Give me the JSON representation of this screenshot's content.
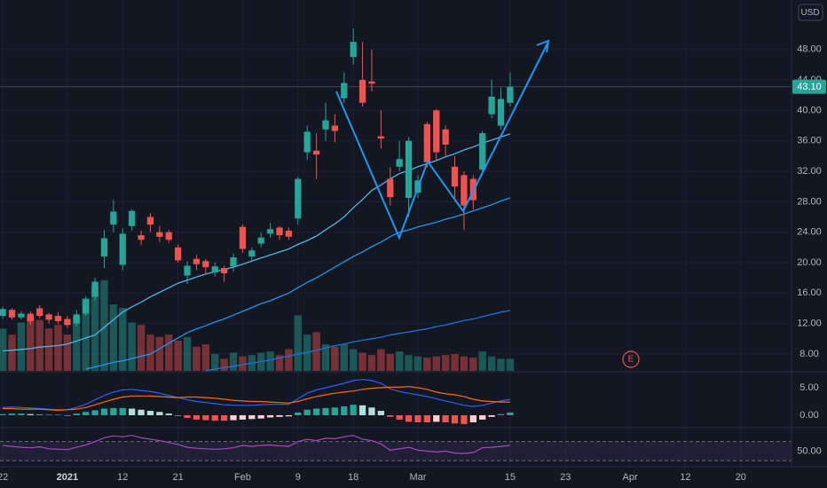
{
  "chart_data": {
    "type": "candlestick",
    "currency": "USD",
    "marker": "E",
    "xlim": [
      -0.3,
      85.5
    ],
    "xticks": [
      {
        "value": 0,
        "label": "22"
      },
      {
        "value": 7,
        "label": "2021"
      },
      {
        "value": 13,
        "label": "12"
      },
      {
        "value": 19,
        "label": "21"
      },
      {
        "value": 26,
        "label": "Feb"
      },
      {
        "value": 32,
        "label": "9"
      },
      {
        "value": 38,
        "label": "18"
      },
      {
        "value": 45,
        "label": "Mar"
      },
      {
        "value": 55,
        "label": "15"
      },
      {
        "value": 61,
        "label": "23"
      },
      {
        "value": 68,
        "label": "Apr"
      },
      {
        "value": 74,
        "label": "12"
      },
      {
        "value": 80,
        "label": "20"
      }
    ],
    "ylim": [
      5.78,
      54.5
    ],
    "yticks": [
      {
        "value": 8,
        "label": "8.00"
      },
      {
        "value": 12,
        "label": "12.00"
      },
      {
        "value": 16,
        "label": "16.00"
      },
      {
        "value": 20,
        "label": "20.00"
      },
      {
        "value": 24,
        "label": "24.00"
      },
      {
        "value": 28,
        "label": "28.00"
      },
      {
        "value": 32,
        "label": "32.00"
      },
      {
        "value": 36,
        "label": "36.00"
      },
      {
        "value": 40,
        "label": "40.00"
      },
      {
        "value": 44,
        "label": "44.00"
      },
      {
        "value": 48,
        "label": "48.00"
      }
    ],
    "up_color": "#26a69a",
    "down_color": "#ef5350",
    "open": [
      13.0,
      13.8,
      12.8,
      13.3,
      14.0,
      13.2,
      13.0,
      12.6,
      12.0,
      13.3,
      15.5,
      20.8,
      25.0,
      19.7,
      24.8,
      23.6,
      26.0,
      24.0,
      24.0,
      22.0,
      18.3,
      20.5,
      20.2,
      18.7,
      19.3,
      19.5,
      24.7,
      20.8,
      22.5,
      23.8,
      24.6,
      24.2,
      25.8,
      34.5,
      34.7,
      37.5,
      38.0,
      41.6,
      47.0,
      44.0,
      43.8,
      36.6,
      31.0,
      32.6,
      28.5,
      29.2,
      38.2,
      40.0,
      37.5,
      32.6,
      31.5,
      31.0,
      32.2,
      39.5,
      38.0,
      41.0
    ],
    "high": [
      14.2,
      14.0,
      13.6,
      13.6,
      14.4,
      13.4,
      13.5,
      13.0,
      13.8,
      15.6,
      18.0,
      24.3,
      28.2,
      24.5,
      27.0,
      24.2,
      26.5,
      24.8,
      24.3,
      22.4,
      20.2,
      21.0,
      20.5,
      20.0,
      19.6,
      21.2,
      25.0,
      22.0,
      24.0,
      25.2,
      24.8,
      24.6,
      31.3,
      38.0,
      37.0,
      41.0,
      39.5,
      45.0,
      50.8,
      49.0,
      48.0,
      40.0,
      32.5,
      36.0,
      36.5,
      31.5,
      38.5,
      40.2,
      38.0,
      34.0,
      32.0,
      31.5,
      37.3,
      44.0,
      43.0,
      45.0
    ],
    "low": [
      12.6,
      12.5,
      12.5,
      11.8,
      12.7,
      12.0,
      11.9,
      11.4,
      11.6,
      13.0,
      15.0,
      19.3,
      24.0,
      19.0,
      24.2,
      22.3,
      24.0,
      22.7,
      22.6,
      20.0,
      17.2,
      19.0,
      18.4,
      18.2,
      17.5,
      18.8,
      21.3,
      20.2,
      22.0,
      23.3,
      23.0,
      23.0,
      25.0,
      33.5,
      31.0,
      36.0,
      35.8,
      41.0,
      46.0,
      40.5,
      42.5,
      35.0,
      27.5,
      32.0,
      26.0,
      28.5,
      32.5,
      33.5,
      34.0,
      28.0,
      24.3,
      27.0,
      31.5,
      39.0,
      37.5,
      40.5
    ],
    "close": [
      13.9,
      12.8,
      13.3,
      12.3,
      13.0,
      12.5,
      12.3,
      11.8,
      13.2,
      15.2,
      17.5,
      23.2,
      26.7,
      23.8,
      26.8,
      23.0,
      25.0,
      23.4,
      23.0,
      20.3,
      19.6,
      19.8,
      19.4,
      19.5,
      18.6,
      20.7,
      21.8,
      21.6,
      23.3,
      24.4,
      23.6,
      23.4,
      31.0,
      37.2,
      34.2,
      38.7,
      37.3,
      43.6,
      49.0,
      41.0,
      43.5,
      36.3,
      28.6,
      33.6,
      36.0,
      30.8,
      33.2,
      34.5,
      35.5,
      30.0,
      27.5,
      28.2,
      37.0,
      41.8,
      41.5,
      43.1
    ],
    "last_price": {
      "value": 43.1,
      "label": "43.10"
    },
    "volume": [
      35,
      30,
      40,
      45,
      42,
      35,
      38,
      30,
      45,
      60,
      70,
      75,
      55,
      52,
      40,
      38,
      30,
      28,
      30,
      25,
      28,
      20,
      22,
      14,
      10,
      15,
      12,
      13,
      15,
      16,
      13,
      18,
      46,
      30,
      32,
      22,
      20,
      22,
      18,
      15,
      13,
      18,
      14,
      16,
      13,
      12,
      11,
      12,
      13,
      14,
      12,
      11,
      16,
      12,
      10,
      10
    ],
    "volume_lim": [
      0,
      110
    ],
    "moving_averages": [
      {
        "color": "#4fb6e8",
        "values": [
          8.4,
          8.5,
          8.6,
          8.7,
          8.9,
          9.0,
          9.1,
          9.3,
          9.7,
          10.1,
          10.5,
          11.5,
          12.5,
          13.5,
          14.2,
          14.8,
          15.5,
          16.1,
          16.7,
          17.3,
          17.7,
          18.1,
          18.5,
          18.8,
          19.1,
          19.4,
          19.8,
          20.2,
          20.6,
          21.0,
          21.4,
          21.8,
          22.4,
          22.9,
          23.5,
          24.3,
          25.1,
          26.0,
          27.2,
          28.3,
          29.5,
          30.2,
          31.0,
          31.7,
          32.1,
          32.6,
          33.0,
          33.4,
          33.9,
          34.3,
          34.8,
          35.2,
          35.7,
          36.1,
          36.5,
          36.9
        ]
      },
      {
        "color": "#2196f3",
        "values": [
          null,
          null,
          null,
          null,
          null,
          null,
          null,
          null,
          null,
          6.0,
          6.3,
          6.6,
          6.9,
          7.1,
          7.4,
          7.7,
          8.0,
          8.7,
          9.4,
          10.1,
          10.8,
          11.3,
          11.7,
          12.2,
          12.6,
          13.1,
          13.6,
          14.1,
          14.6,
          15.0,
          15.5,
          16.0,
          16.7,
          17.4,
          18.0,
          18.7,
          19.4,
          20.1,
          20.8,
          21.4,
          22.1,
          22.7,
          23.4,
          24.0,
          24.3,
          24.7,
          25.0,
          25.3,
          25.7,
          26.0,
          26.4,
          26.8,
          27.2,
          27.6,
          28.1,
          28.5
        ]
      },
      {
        "color": "#1e73d8",
        "values": [
          null,
          null,
          null,
          null,
          null,
          null,
          null,
          null,
          null,
          null,
          null,
          null,
          null,
          null,
          null,
          null,
          null,
          null,
          null,
          null,
          null,
          null,
          5.8,
          6.0,
          6.2,
          6.4,
          6.6,
          6.8,
          7.0,
          7.2,
          7.5,
          7.7,
          8.0,
          8.2,
          8.5,
          8.8,
          9.1,
          9.3,
          9.6,
          9.8,
          10.0,
          10.2,
          10.5,
          10.7,
          10.9,
          11.1,
          11.3,
          11.6,
          11.8,
          12.1,
          12.4,
          12.6,
          12.9,
          13.2,
          13.5,
          13.7
        ]
      }
    ],
    "macd": {
      "ylim": [
        -1.94,
        7.74
      ],
      "yticks": [
        {
          "value": 5,
          "label": "5.00"
        },
        {
          "value": 0,
          "label": "0.00"
        }
      ],
      "histogram": [
        0.2,
        0.3,
        0.3,
        0.2,
        0.1,
        0.1,
        0.1,
        0.0,
        0.3,
        0.6,
        0.9,
        1.2,
        1.3,
        1.3,
        1.2,
        1.0,
        0.8,
        0.6,
        0.3,
        0.0,
        -0.5,
        -0.8,
        -0.9,
        -1.0,
        -1.0,
        -0.9,
        -0.8,
        -0.7,
        -0.6,
        -0.4,
        -0.3,
        -0.2,
        0.5,
        1.0,
        1.2,
        1.3,
        1.4,
        1.6,
        1.9,
        1.8,
        1.4,
        0.8,
        -0.3,
        -0.8,
        -1.2,
        -1.3,
        -1.3,
        -1.2,
        -1.3,
        -1.5,
        -1.6,
        -1.3,
        -0.8,
        -0.3,
        0.2,
        0.5
      ],
      "macd": {
        "color": "#2962ff",
        "values": [
          1.4,
          1.5,
          1.4,
          1.3,
          1.2,
          1.1,
          1.0,
          1.0,
          1.4,
          2.0,
          2.8,
          3.6,
          4.2,
          4.6,
          4.7,
          4.5,
          4.3,
          4.0,
          3.6,
          3.2,
          2.8,
          2.5,
          2.3,
          2.1,
          1.9,
          1.8,
          1.8,
          1.8,
          1.9,
          2.0,
          2.0,
          2.0,
          3.0,
          4.0,
          4.6,
          5.0,
          5.4,
          5.8,
          6.3,
          6.5,
          6.3,
          5.8,
          4.8,
          4.3,
          4.0,
          3.7,
          3.4,
          3.0,
          2.6,
          2.2,
          1.8,
          1.6,
          1.8,
          2.2,
          2.6,
          2.9
        ]
      },
      "signal": {
        "color": "#ff6d00",
        "values": [
          1.2,
          1.2,
          1.1,
          1.1,
          1.1,
          1.0,
          0.9,
          1.0,
          1.1,
          1.4,
          1.9,
          2.4,
          2.9,
          3.3,
          3.5,
          3.5,
          3.5,
          3.4,
          3.3,
          3.2,
          3.3,
          3.3,
          3.2,
          3.1,
          2.9,
          2.7,
          2.6,
          2.5,
          2.5,
          2.4,
          2.3,
          2.2,
          2.5,
          3.0,
          3.4,
          3.7,
          4.0,
          4.2,
          4.4,
          4.7,
          4.9,
          5.0,
          5.1,
          5.1,
          5.2,
          5.0,
          4.7,
          4.2,
          3.9,
          3.7,
          3.4,
          2.9,
          2.6,
          2.5,
          2.4,
          2.4
        ]
      }
    },
    "rsi": {
      "ylim": [
        17.3,
        95.5
      ],
      "yticks": [
        {
          "value": 50,
          "label": "50.00"
        }
      ],
      "bands": [
        30,
        70
      ],
      "color": "#ab47bc",
      "values": [
        62,
        60,
        58,
        57,
        59,
        55,
        54,
        53,
        58,
        63,
        70,
        78,
        82,
        80,
        83,
        78,
        75,
        72,
        68,
        64,
        58,
        56,
        55,
        54,
        55,
        57,
        62,
        60,
        62,
        63,
        61,
        60,
        70,
        75,
        72,
        77,
        76,
        80,
        83,
        75,
        72,
        65,
        52,
        55,
        58,
        52,
        50,
        48,
        50,
        46,
        45,
        47,
        57,
        58,
        60,
        62
      ]
    }
  }
}
